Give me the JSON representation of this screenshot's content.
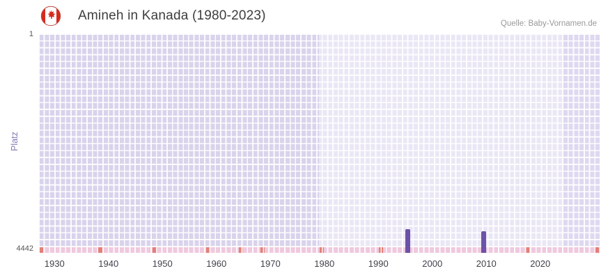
{
  "header": {
    "title": "Amineh in Kanada (1980-2023)",
    "source": "Quelle: Baby-Vornamen.de",
    "flag_icon": "canada-flag-icon"
  },
  "colors": {
    "bar": "#6b51a8",
    "band_dark": "#d9d3ec",
    "band_light": "#eae7f5",
    "strip": "#efc9de",
    "highlight": "#e57f78",
    "title_text": "#3d3d3d",
    "source_text": "#999999",
    "ylabel_text": "#8577b3"
  },
  "chart_data": {
    "type": "bar",
    "title": "Amineh in Kanada (1980-2023)",
    "xlabel": "",
    "ylabel": "Platz",
    "y_axis": {
      "top_label": "1",
      "bottom_label": "4442",
      "min": 1,
      "max": 4442,
      "inverted": true
    },
    "x_range": [
      1927,
      2031
    ],
    "x_ticks": [
      1930,
      1940,
      1950,
      1960,
      1970,
      1980,
      1990,
      2000,
      2010,
      2020
    ],
    "grid": true,
    "legend": "none",
    "bands": [
      {
        "from": 1927,
        "to": 1979,
        "color": "#d9d3ec",
        "meaning": "no-data-period"
      },
      {
        "from": 1979,
        "to": 2024,
        "color": "#eae7f5",
        "meaning": "data-period"
      },
      {
        "from": 2024,
        "to": 2031,
        "color": "#ded8f0",
        "meaning": "no-data-period"
      }
    ],
    "bars": [
      {
        "year": 1995,
        "rank": 3960,
        "color": "#6b51a8"
      },
      {
        "year": 2009,
        "rank": 4000,
        "color": "#6b51a8"
      }
    ],
    "baseline_strip": {
      "from": 1927,
      "to": 2031,
      "rank": 4442,
      "color": "#efc9de"
    },
    "baseline_highlights": [
      {
        "year": 1927,
        "color": "#e57f78"
      },
      {
        "year": 1938,
        "color": "#e57f78"
      },
      {
        "year": 1948,
        "color": "#e57f78"
      },
      {
        "year": 1958,
        "color": "#e57f78"
      },
      {
        "year": 1964,
        "color": "#e57f78"
      },
      {
        "year": 1968,
        "color": "#e57f78"
      },
      {
        "year": 1979,
        "color": "#e57f78"
      },
      {
        "year": 1990,
        "color": "#e57f78"
      },
      {
        "year": 2017,
        "color": "#e57f78"
      },
      {
        "year": 2030,
        "color": "#e57f78"
      }
    ]
  }
}
